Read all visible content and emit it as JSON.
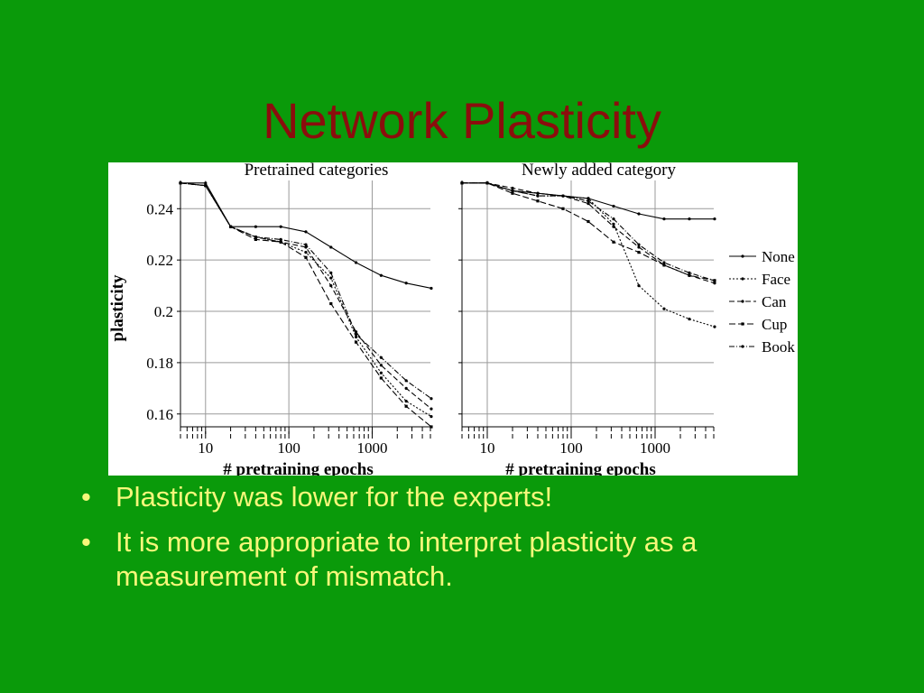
{
  "slide": {
    "title": "Network Plasticity",
    "bullets": [
      "Plasticity was lower for the experts!",
      "It is more appropriate to interpret plasticity as a measurement of mismatch."
    ],
    "bullet_symbol": "•"
  },
  "colors": {
    "background": "#0a9a0a",
    "title": "#8b0d0d",
    "bullet_text": "#f7f77a"
  },
  "legend": [
    "None",
    "Face",
    "Can",
    "Cup",
    "Book"
  ],
  "chart_data": [
    {
      "type": "line",
      "title": "Pretrained categories",
      "xlabel": "# pretraining epochs",
      "ylabel": "plasticity",
      "xscale": "log",
      "xlim": [
        5,
        5000
      ],
      "ylim": [
        0.155,
        0.251
      ],
      "xticks": [
        10,
        100,
        1000
      ],
      "xtick_labels": [
        "10",
        "100",
        "1000"
      ],
      "yticks": [
        0.16,
        0.18,
        0.2,
        0.22,
        0.24
      ],
      "ytick_labels": [
        "0.16",
        "0.18",
        "0.2",
        "0.22",
        "0.24"
      ],
      "grid": true,
      "x": [
        5,
        10,
        20,
        40,
        80,
        160,
        320,
        640,
        1280,
        2560,
        5120
      ],
      "series": [
        {
          "name": "None",
          "values": [
            0.25,
            0.25,
            0.233,
            0.233,
            0.233,
            0.231,
            0.225,
            0.219,
            0.214,
            0.211,
            0.209
          ]
        },
        {
          "name": "Face",
          "values": [
            0.25,
            0.249,
            0.233,
            0.229,
            0.227,
            0.223,
            0.213,
            0.19,
            0.176,
            0.165,
            0.159
          ]
        },
        {
          "name": "Can",
          "values": [
            0.25,
            0.249,
            0.233,
            0.229,
            0.227,
            0.225,
            0.21,
            0.192,
            0.179,
            0.17,
            0.162
          ]
        },
        {
          "name": "Cup",
          "values": [
            0.25,
            0.249,
            0.233,
            0.228,
            0.227,
            0.221,
            0.203,
            0.188,
            0.174,
            0.163,
            0.155
          ]
        },
        {
          "name": "Book",
          "values": [
            0.25,
            0.249,
            0.233,
            0.229,
            0.228,
            0.226,
            0.215,
            0.191,
            0.182,
            0.173,
            0.166
          ]
        }
      ]
    },
    {
      "type": "line",
      "title": "Newly added category",
      "xlabel": "# pretraining epochs",
      "ylabel": "",
      "xscale": "log",
      "xlim": [
        5,
        5000
      ],
      "ylim": [
        0.155,
        0.251
      ],
      "xticks": [
        10,
        100,
        1000
      ],
      "xtick_labels": [
        "10",
        "100",
        "1000"
      ],
      "yticks": [
        0.16,
        0.18,
        0.2,
        0.22,
        0.24
      ],
      "ytick_labels": [],
      "grid": true,
      "legend_position": "right",
      "x": [
        5,
        10,
        20,
        40,
        80,
        160,
        320,
        640,
        1280,
        2560,
        5120
      ],
      "series": [
        {
          "name": "None",
          "values": [
            0.25,
            0.25,
            0.247,
            0.246,
            0.245,
            0.244,
            0.241,
            0.238,
            0.236,
            0.236,
            0.236
          ]
        },
        {
          "name": "Face",
          "values": [
            0.25,
            0.25,
            0.247,
            0.245,
            0.245,
            0.244,
            0.234,
            0.21,
            0.201,
            0.197,
            0.194
          ]
        },
        {
          "name": "Can",
          "values": [
            0.25,
            0.25,
            0.248,
            0.246,
            0.245,
            0.242,
            0.233,
            0.225,
            0.218,
            0.214,
            0.211
          ]
        },
        {
          "name": "Cup",
          "values": [
            0.25,
            0.25,
            0.246,
            0.243,
            0.24,
            0.235,
            0.227,
            0.223,
            0.218,
            0.214,
            0.212
          ]
        },
        {
          "name": "Book",
          "values": [
            0.25,
            0.25,
            0.247,
            0.245,
            0.245,
            0.243,
            0.236,
            0.226,
            0.219,
            0.215,
            0.212
          ]
        }
      ]
    }
  ]
}
